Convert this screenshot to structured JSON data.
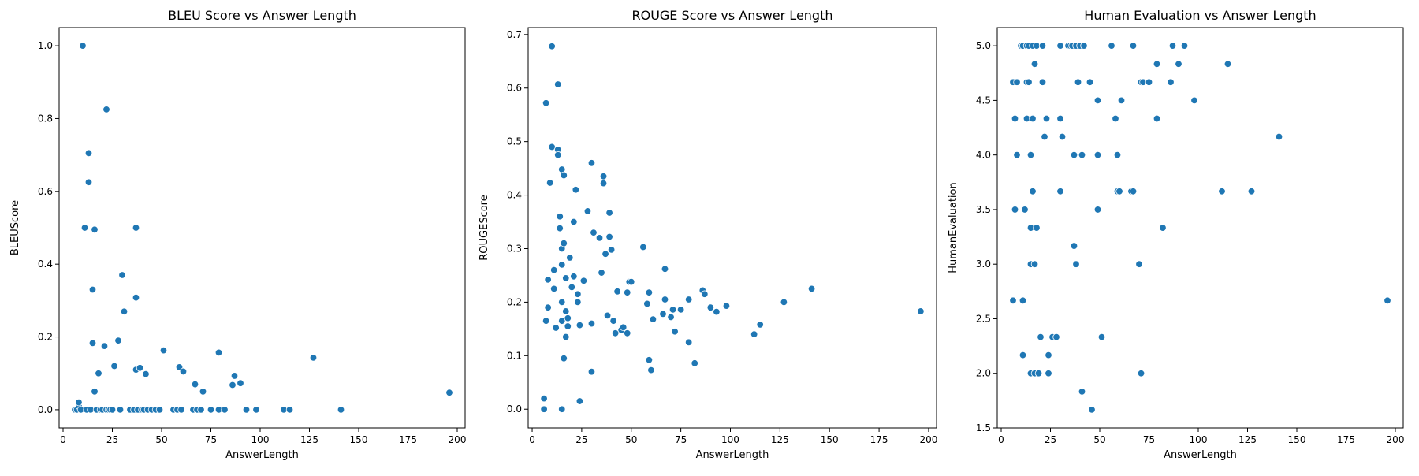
{
  "chart_data": [
    {
      "type": "scatter",
      "title": "BLEU Score vs Answer Length",
      "xlabel": "AnswerLength",
      "ylabel": "BLEUScore",
      "xlim": [
        -2,
        204
      ],
      "ylim": [
        -0.05,
        1.05
      ],
      "xticks": [
        0,
        25,
        50,
        75,
        100,
        125,
        150,
        175,
        200
      ],
      "xtick_labels": [
        "0",
        "25",
        "50",
        "75",
        "100",
        "125",
        "150",
        "175",
        "200"
      ],
      "yticks": [
        0.0,
        0.2,
        0.4,
        0.6,
        0.8,
        1.0
      ],
      "ytick_labels": [
        "0.0",
        "0.2",
        "0.4",
        "0.6",
        "0.8",
        "1.0"
      ],
      "grid": false,
      "color": "#1f77b4",
      "points": [
        [
          6,
          0
        ],
        [
          7,
          0
        ],
        [
          8,
          0.01
        ],
        [
          8,
          0.02
        ],
        [
          9,
          0
        ],
        [
          10,
          1.0
        ],
        [
          11,
          0.5
        ],
        [
          12,
          0
        ],
        [
          13,
          0.705
        ],
        [
          13,
          0.625
        ],
        [
          14,
          0
        ],
        [
          15,
          0.33
        ],
        [
          15,
          0.183
        ],
        [
          16,
          0.05
        ],
        [
          16,
          0.495
        ],
        [
          17,
          0
        ],
        [
          18,
          0.1
        ],
        [
          19,
          0
        ],
        [
          20,
          0
        ],
        [
          21,
          0.175
        ],
        [
          22,
          0.825
        ],
        [
          22,
          0
        ],
        [
          23,
          0
        ],
        [
          24,
          0
        ],
        [
          25,
          0
        ],
        [
          26,
          0.12
        ],
        [
          28,
          0.19
        ],
        [
          29,
          0
        ],
        [
          30,
          0.37
        ],
        [
          31,
          0.27
        ],
        [
          34,
          0
        ],
        [
          36,
          0
        ],
        [
          37,
          0.308
        ],
        [
          37,
          0.11
        ],
        [
          37,
          0.5
        ],
        [
          38,
          0
        ],
        [
          39,
          0.115
        ],
        [
          40,
          0
        ],
        [
          41,
          0
        ],
        [
          42,
          0.098
        ],
        [
          43,
          0
        ],
        [
          45,
          0
        ],
        [
          47,
          0
        ],
        [
          49,
          0
        ],
        [
          51,
          0.163
        ],
        [
          56,
          0
        ],
        [
          58,
          0
        ],
        [
          59,
          0.117
        ],
        [
          60,
          0
        ],
        [
          61,
          0.105
        ],
        [
          66,
          0
        ],
        [
          67,
          0.07
        ],
        [
          68,
          0
        ],
        [
          70,
          0
        ],
        [
          71,
          0.05
        ],
        [
          75,
          0
        ],
        [
          79,
          0.157
        ],
        [
          79,
          0
        ],
        [
          82,
          0
        ],
        [
          86,
          0.068
        ],
        [
          87,
          0.093
        ],
        [
          90,
          0.073
        ],
        [
          93,
          0
        ],
        [
          98,
          0
        ],
        [
          112,
          0
        ],
        [
          115,
          0
        ],
        [
          127,
          0.143
        ],
        [
          141,
          0
        ],
        [
          196,
          0.047
        ]
      ]
    },
    {
      "type": "scatter",
      "title": "ROUGE Score vs Answer Length",
      "xlabel": "AnswerLength",
      "ylabel": "ROUGEScore",
      "xlim": [
        -2,
        204
      ],
      "ylim": [
        -0.035,
        0.713
      ],
      "xticks": [
        0,
        25,
        50,
        75,
        100,
        125,
        150,
        175,
        200
      ],
      "xtick_labels": [
        "0",
        "25",
        "50",
        "75",
        "100",
        "125",
        "150",
        "175",
        "200"
      ],
      "yticks": [
        0.0,
        0.1,
        0.2,
        0.3,
        0.4,
        0.5,
        0.6,
        0.7
      ],
      "ytick_labels": [
        "0.0",
        "0.1",
        "0.2",
        "0.3",
        "0.4",
        "0.5",
        "0.6",
        "0.7"
      ],
      "grid": false,
      "color": "#1f77b4",
      "points": [
        [
          6,
          0
        ],
        [
          6,
          0.02
        ],
        [
          7,
          0.165
        ],
        [
          7,
          0.572
        ],
        [
          8,
          0.19
        ],
        [
          8,
          0.242
        ],
        [
          9,
          0.423
        ],
        [
          10,
          0.49
        ],
        [
          10,
          0.678
        ],
        [
          11,
          0.26
        ],
        [
          11,
          0.225
        ],
        [
          12,
          0.152
        ],
        [
          13,
          0.485
        ],
        [
          13,
          0.475
        ],
        [
          13,
          0.607
        ],
        [
          14,
          0.338
        ],
        [
          14,
          0.36
        ],
        [
          15,
          0.165
        ],
        [
          15,
          0.27
        ],
        [
          15,
          0.3
        ],
        [
          15,
          0.448
        ],
        [
          15,
          0.2
        ],
        [
          15,
          0
        ],
        [
          16,
          0.095
        ],
        [
          16,
          0.437
        ],
        [
          16,
          0.31
        ],
        [
          17,
          0.183
        ],
        [
          17,
          0.135
        ],
        [
          17,
          0.245
        ],
        [
          18,
          0.155
        ],
        [
          18,
          0.17
        ],
        [
          19,
          0.283
        ],
        [
          20,
          0.228
        ],
        [
          21,
          0.248
        ],
        [
          21,
          0.35
        ],
        [
          22,
          0.41
        ],
        [
          23,
          0.2
        ],
        [
          23,
          0.215
        ],
        [
          24,
          0.015
        ],
        [
          24,
          0.157
        ],
        [
          26,
          0.24
        ],
        [
          28,
          0.37
        ],
        [
          30,
          0.46
        ],
        [
          30,
          0.16
        ],
        [
          30,
          0.07
        ],
        [
          31,
          0.33
        ],
        [
          34,
          0.32
        ],
        [
          35,
          0.255
        ],
        [
          36,
          0.435
        ],
        [
          36,
          0.422
        ],
        [
          37,
          0.29
        ],
        [
          38,
          0.175
        ],
        [
          39,
          0.367
        ],
        [
          39,
          0.322
        ],
        [
          40,
          0.298
        ],
        [
          41,
          0.165
        ],
        [
          42,
          0.142
        ],
        [
          43,
          0.22
        ],
        [
          45,
          0.148
        ],
        [
          46,
          0.153
        ],
        [
          48,
          0.142
        ],
        [
          48,
          0.218
        ],
        [
          49,
          0.238
        ],
        [
          50,
          0.238
        ],
        [
          56,
          0.303
        ],
        [
          58,
          0.197
        ],
        [
          59,
          0.092
        ],
        [
          59,
          0.218
        ],
        [
          60,
          0.073
        ],
        [
          61,
          0.168
        ],
        [
          66,
          0.178
        ],
        [
          67,
          0.262
        ],
        [
          67,
          0.205
        ],
        [
          70,
          0.172
        ],
        [
          71,
          0.186
        ],
        [
          72,
          0.145
        ],
        [
          75,
          0.186
        ],
        [
          79,
          0.125
        ],
        [
          79,
          0.205
        ],
        [
          82,
          0.086
        ],
        [
          86,
          0.222
        ],
        [
          87,
          0.215
        ],
        [
          90,
          0.19
        ],
        [
          93,
          0.182
        ],
        [
          98,
          0.193
        ],
        [
          112,
          0.14
        ],
        [
          115,
          0.158
        ],
        [
          127,
          0.2
        ],
        [
          141,
          0.225
        ],
        [
          196,
          0.183
        ]
      ]
    },
    {
      "type": "scatter",
      "title": "Human Evaluation vs Answer Length",
      "xlabel": "AnswerLength",
      "ylabel": "HumanEvaluation",
      "xlim": [
        -2,
        204
      ],
      "ylim": [
        1.5,
        5.167
      ],
      "xticks": [
        0,
        25,
        50,
        75,
        100,
        125,
        150,
        175,
        200
      ],
      "xtick_labels": [
        "0",
        "25",
        "50",
        "75",
        "100",
        "125",
        "150",
        "175",
        "200"
      ],
      "yticks": [
        1.5,
        2.0,
        2.5,
        3.0,
        3.5,
        4.0,
        4.5,
        5.0
      ],
      "ytick_labels": [
        "1.5",
        "2.0",
        "2.5",
        "3.0",
        "3.5",
        "4.0",
        "4.5",
        "5.0"
      ],
      "grid": false,
      "color": "#1f77b4",
      "points": [
        [
          6,
          2.667
        ],
        [
          6,
          4.667
        ],
        [
          7,
          4.333
        ],
        [
          7,
          3.5
        ],
        [
          8,
          4.667
        ],
        [
          8,
          4.0
        ],
        [
          10,
          5.0
        ],
        [
          11,
          5.0
        ],
        [
          11,
          2.667
        ],
        [
          11,
          2.167
        ],
        [
          12,
          3.5
        ],
        [
          13,
          5.0
        ],
        [
          13,
          4.667
        ],
        [
          13,
          4.333
        ],
        [
          14,
          4.667
        ],
        [
          14,
          5.0
        ],
        [
          15,
          2.0
        ],
        [
          15,
          4.0
        ],
        [
          15,
          3.333
        ],
        [
          15,
          3.0
        ],
        [
          16,
          5.0
        ],
        [
          16,
          4.333
        ],
        [
          16,
          3.667
        ],
        [
          17,
          4.833
        ],
        [
          17,
          3.0
        ],
        [
          17,
          2.0
        ],
        [
          18,
          5.0
        ],
        [
          18,
          3.333
        ],
        [
          19,
          2.0
        ],
        [
          20,
          2.333
        ],
        [
          21,
          5.0
        ],
        [
          21,
          4.667
        ],
        [
          22,
          4.167
        ],
        [
          23,
          4.333
        ],
        [
          24,
          2.0
        ],
        [
          24,
          2.167
        ],
        [
          26,
          2.333
        ],
        [
          28,
          2.333
        ],
        [
          30,
          5.0
        ],
        [
          30,
          4.333
        ],
        [
          30,
          3.667
        ],
        [
          31,
          4.167
        ],
        [
          34,
          5.0
        ],
        [
          35,
          5.0
        ],
        [
          36,
          5.0
        ],
        [
          37,
          4.0
        ],
        [
          37,
          3.167
        ],
        [
          38,
          5.0
        ],
        [
          38,
          3.0
        ],
        [
          39,
          4.667
        ],
        [
          40,
          5.0
        ],
        [
          41,
          4.0
        ],
        [
          41,
          1.833
        ],
        [
          42,
          5.0
        ],
        [
          45,
          4.667
        ],
        [
          46,
          1.667
        ],
        [
          49,
          4.5
        ],
        [
          49,
          4.0
        ],
        [
          49,
          3.5
        ],
        [
          51,
          2.333
        ],
        [
          56,
          5.0
        ],
        [
          58,
          4.333
        ],
        [
          59,
          4.0
        ],
        [
          59,
          3.667
        ],
        [
          60,
          3.667
        ],
        [
          61,
          4.5
        ],
        [
          66,
          3.667
        ],
        [
          67,
          3.667
        ],
        [
          67,
          5.0
        ],
        [
          70,
          3.0
        ],
        [
          71,
          4.667
        ],
        [
          71,
          2.0
        ],
        [
          72,
          4.667
        ],
        [
          75,
          4.667
        ],
        [
          79,
          4.833
        ],
        [
          79,
          4.333
        ],
        [
          82,
          3.333
        ],
        [
          86,
          4.667
        ],
        [
          87,
          5.0
        ],
        [
          90,
          4.833
        ],
        [
          93,
          5.0
        ],
        [
          98,
          4.5
        ],
        [
          112,
          3.667
        ],
        [
          115,
          4.833
        ],
        [
          127,
          3.667
        ],
        [
          141,
          4.167
        ],
        [
          196,
          2.667
        ]
      ]
    }
  ]
}
